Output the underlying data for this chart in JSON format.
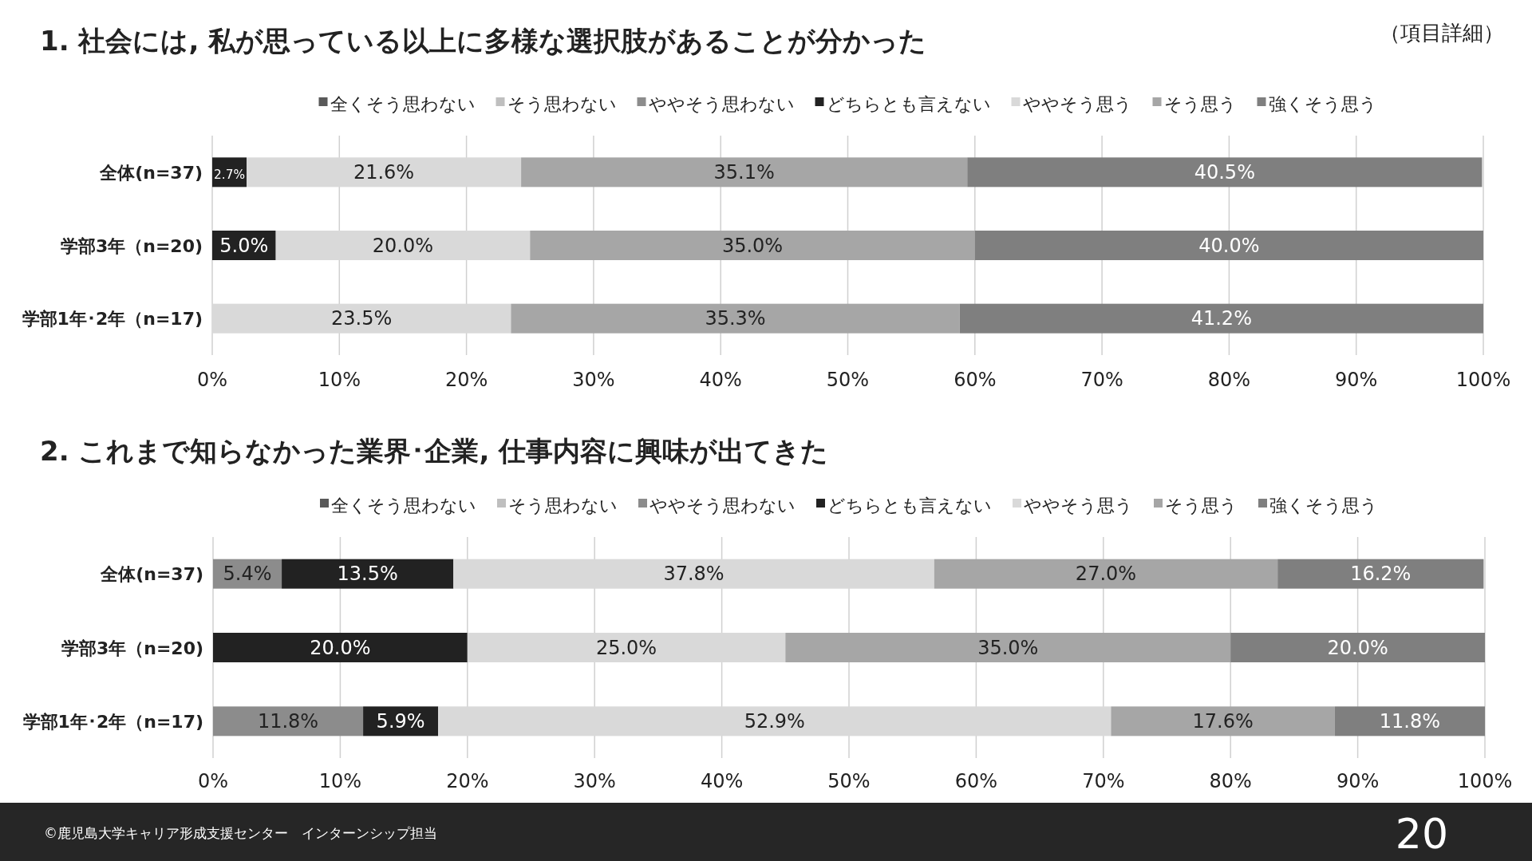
{
  "chart_data": [
    {
      "type": "bar",
      "orientation": "horizontal",
      "stacked": true,
      "title": "1. 社会には, 私が思っている以上に多様な選択肢があることが分かった",
      "annotations": [
        "（項目詳細）"
      ],
      "categories": [
        "全体(n=37)",
        "学部3年（n=20)",
        "学部1年･2年（n=17)"
      ],
      "series": [
        {
          "name": "全くそう思わない",
          "color": "#595959",
          "values": [
            null,
            null,
            null
          ]
        },
        {
          "name": "そう思わない",
          "color": "#bfbfbf",
          "values": [
            null,
            null,
            null
          ]
        },
        {
          "name": "ややそう思わない",
          "color": "#8c8c8c",
          "values": [
            null,
            null,
            null
          ]
        },
        {
          "name": "どちらとも言えない",
          "color": "#222222",
          "values": [
            2.7,
            5.0,
            null
          ],
          "value_labels": [
            "2.7%",
            "5.0%",
            null
          ]
        },
        {
          "name": "ややそう思う",
          "color": "#d9d9d9",
          "values": [
            21.6,
            20.0,
            23.5
          ],
          "value_labels": [
            "21.6%",
            "20.0%",
            "23.5%"
          ]
        },
        {
          "name": "そう思う",
          "color": "#a6a6a6",
          "values": [
            35.1,
            35.0,
            35.3
          ],
          "value_labels": [
            "35.1%",
            "35.0%",
            "35.3%"
          ]
        },
        {
          "name": "強くそう思う",
          "color": "#7f7f7f",
          "values": [
            40.5,
            40.0,
            41.2
          ],
          "value_labels": [
            "40.5%",
            "40.0%",
            "41.2%"
          ]
        }
      ],
      "xlim": [
        0,
        100
      ],
      "xticks": [
        {
          "value": 0,
          "label": "0%"
        },
        {
          "value": 10,
          "label": "10%"
        },
        {
          "value": 20,
          "label": "20%"
        },
        {
          "value": 30,
          "label": "30%"
        },
        {
          "value": 40,
          "label": "40%"
        },
        {
          "value": 50,
          "label": "50%"
        },
        {
          "value": 60,
          "label": "60%"
        },
        {
          "value": 70,
          "label": "70%"
        },
        {
          "value": 80,
          "label": "80%"
        },
        {
          "value": 90,
          "label": "90%"
        },
        {
          "value": 100,
          "label": "100%"
        }
      ],
      "grid": "x",
      "legend": "top"
    },
    {
      "type": "bar",
      "orientation": "horizontal",
      "stacked": true,
      "title": "2. これまで知らなかった業界･企業, 仕事内容に興味が出てきた",
      "annotations": [
        "©鹿児島大学キャリア形成支援センター　インターンシップ担当",
        "20"
      ],
      "categories": [
        "全体(n=37)",
        "学部3年（n=20)",
        "学部1年･2年（n=17)"
      ],
      "series": [
        {
          "name": "全くそう思わない",
          "color": "#595959",
          "values": [
            null,
            null,
            null
          ]
        },
        {
          "name": "そう思わない",
          "color": "#bfbfbf",
          "values": [
            null,
            null,
            null
          ]
        },
        {
          "name": "ややそう思わない",
          "color": "#8c8c8c",
          "values": [
            5.4,
            null,
            11.8
          ],
          "value_labels": [
            "5.4%",
            null,
            "11.8%"
          ]
        },
        {
          "name": "どちらとも言えない",
          "color": "#222222",
          "values": [
            13.5,
            20.0,
            5.9
          ],
          "value_labels": [
            "13.5%",
            "20.0%",
            "5.9%"
          ]
        },
        {
          "name": "ややそう思う",
          "color": "#d9d9d9",
          "values": [
            37.8,
            25.0,
            52.9
          ],
          "value_labels": [
            "37.8%",
            "25.0%",
            "52.9%"
          ]
        },
        {
          "name": "そう思う",
          "color": "#a6a6a6",
          "values": [
            27.0,
            35.0,
            17.6
          ],
          "value_labels": [
            "27.0%",
            "35.0%",
            "17.6%"
          ]
        },
        {
          "name": "強くそう思う",
          "color": "#7f7f7f",
          "values": [
            16.2,
            20.0,
            11.8
          ],
          "value_labels": [
            "16.2%",
            "20.0%",
            "11.8%"
          ]
        }
      ],
      "xlim": [
        0,
        100
      ],
      "xticks": [
        {
          "value": 0,
          "label": "0%"
        },
        {
          "value": 10,
          "label": "10%"
        },
        {
          "value": 20,
          "label": "20%"
        },
        {
          "value": 30,
          "label": "30%"
        },
        {
          "value": 40,
          "label": "40%"
        },
        {
          "value": 50,
          "label": "50%"
        },
        {
          "value": 60,
          "label": "60%"
        },
        {
          "value": 70,
          "label": "70%"
        },
        {
          "value": 80,
          "label": "80%"
        },
        {
          "value": 90,
          "label": "90%"
        },
        {
          "value": 100,
          "label": "100%"
        }
      ],
      "grid": "x",
      "legend": "top"
    }
  ]
}
